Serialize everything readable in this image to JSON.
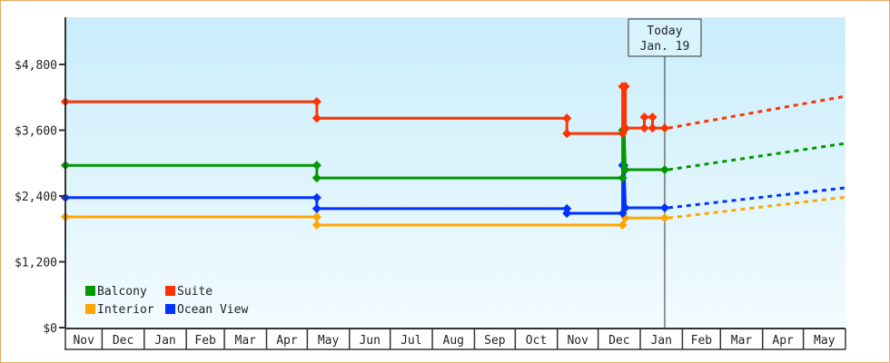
{
  "chart_data": {
    "type": "line",
    "title": "",
    "xlabel": "",
    "ylabel": "",
    "ylim": [
      0,
      5600
    ],
    "y_ticks": [
      "$0",
      "$1,200",
      "$2,400",
      "$3,600",
      "$4,800"
    ],
    "y_tick_values": [
      0,
      1200,
      2400,
      3600,
      4800
    ],
    "x_range": [
      "2012-11-04",
      "2014-06-01"
    ],
    "x_tick_labels": [
      "Nov",
      "Dec",
      "Jan",
      "Feb",
      "Mar",
      "Apr",
      "May",
      "Jun",
      "Jul",
      "Aug",
      "Sep",
      "Oct",
      "Nov",
      "Dec",
      "Jan",
      "Feb",
      "Mar",
      "Apr",
      "May"
    ],
    "grid": false,
    "legend_placement": "bottom-left",
    "today": {
      "label_line1": "Today",
      "label_line2": "Jan. 19",
      "date": "2014-01-19"
    },
    "series": [
      {
        "name": "Balcony",
        "color": "#009900",
        "points": [
          [
            "2012-11-04",
            2960
          ],
          [
            "2013-05-08",
            2960
          ],
          [
            "2013-05-08",
            2730
          ],
          [
            "2013-12-19",
            2730
          ],
          [
            "2013-12-19",
            3600
          ],
          [
            "2013-12-20",
            3600
          ],
          [
            "2013-12-21",
            2880
          ],
          [
            "2014-01-19",
            2880
          ]
        ],
        "forecast": [
          [
            "2014-01-19",
            2880
          ],
          [
            "2014-06-01",
            3360
          ]
        ]
      },
      {
        "name": "Suite",
        "color": "#ff3300",
        "points": [
          [
            "2012-11-04",
            4120
          ],
          [
            "2013-05-08",
            4120
          ],
          [
            "2013-05-08",
            3820
          ],
          [
            "2013-11-08",
            3820
          ],
          [
            "2013-11-08",
            3540
          ],
          [
            "2013-12-19",
            3540
          ],
          [
            "2013-12-19",
            4400
          ],
          [
            "2013-12-21",
            4400
          ],
          [
            "2013-12-21",
            3640
          ],
          [
            "2014-01-04",
            3640
          ],
          [
            "2014-01-04",
            3840
          ],
          [
            "2014-01-10",
            3840
          ],
          [
            "2014-01-10",
            3640
          ],
          [
            "2014-01-19",
            3640
          ]
        ],
        "forecast": [
          [
            "2014-01-19",
            3640
          ],
          [
            "2014-06-01",
            4220
          ]
        ]
      },
      {
        "name": "Interior",
        "color": "#ffa500",
        "points": [
          [
            "2012-11-04",
            2020
          ],
          [
            "2013-05-08",
            2020
          ],
          [
            "2013-05-08",
            1870
          ],
          [
            "2013-12-19",
            1870
          ],
          [
            "2013-12-21",
            2000
          ],
          [
            "2014-01-19",
            2000
          ]
        ],
        "forecast": [
          [
            "2014-01-19",
            2000
          ],
          [
            "2014-06-01",
            2380
          ]
        ]
      },
      {
        "name": "Ocean View",
        "color": "#0033ff",
        "points": [
          [
            "2012-11-04",
            2370
          ],
          [
            "2013-05-08",
            2370
          ],
          [
            "2013-05-08",
            2170
          ],
          [
            "2013-11-08",
            2170
          ],
          [
            "2013-11-08",
            2085
          ],
          [
            "2013-12-19",
            2085
          ],
          [
            "2013-12-19",
            2960
          ],
          [
            "2013-12-20",
            2960
          ],
          [
            "2013-12-21",
            2185
          ],
          [
            "2014-01-19",
            2185
          ]
        ],
        "forecast": [
          [
            "2014-01-19",
            2185
          ],
          [
            "2014-06-01",
            2550
          ]
        ]
      }
    ]
  }
}
